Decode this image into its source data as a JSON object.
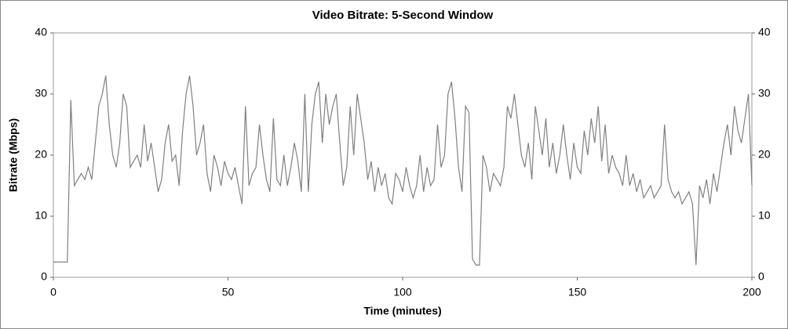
{
  "chart_data": {
    "type": "line",
    "title": "Video Bitrate: 5-Second Window",
    "x_label": "Time (minutes)",
    "y_label": "Bitrate (Mbps)",
    "xlim": [
      0,
      200
    ],
    "xticks": [
      0,
      50,
      100,
      150,
      200
    ],
    "ylim": [
      0,
      40
    ],
    "yticks": [
      0,
      10,
      20,
      30,
      40
    ],
    "y2lim": [
      0,
      40
    ],
    "y2ticks": [
      0,
      10,
      20,
      30,
      40
    ],
    "grid": false,
    "x": [
      0,
      1,
      2,
      3,
      4,
      5,
      6,
      7,
      8,
      9,
      10,
      11,
      12,
      13,
      14,
      15,
      16,
      17,
      18,
      19,
      20,
      21,
      22,
      23,
      24,
      25,
      26,
      27,
      28,
      29,
      30,
      31,
      32,
      33,
      34,
      35,
      36,
      37,
      38,
      39,
      40,
      41,
      42,
      43,
      44,
      45,
      46,
      47,
      48,
      49,
      50,
      51,
      52,
      53,
      54,
      55,
      56,
      57,
      58,
      59,
      60,
      61,
      62,
      63,
      64,
      65,
      66,
      67,
      68,
      69,
      70,
      71,
      72,
      73,
      74,
      75,
      76,
      77,
      78,
      79,
      80,
      81,
      82,
      83,
      84,
      85,
      86,
      87,
      88,
      89,
      90,
      91,
      92,
      93,
      94,
      95,
      96,
      97,
      98,
      99,
      100,
      101,
      102,
      103,
      104,
      105,
      106,
      107,
      108,
      109,
      110,
      111,
      112,
      113,
      114,
      115,
      116,
      117,
      118,
      119,
      120,
      121,
      122,
      123,
      124,
      125,
      126,
      127,
      128,
      129,
      130,
      131,
      132,
      133,
      134,
      135,
      136,
      137,
      138,
      139,
      140,
      141,
      142,
      143,
      144,
      145,
      146,
      147,
      148,
      149,
      150,
      151,
      152,
      153,
      154,
      155,
      156,
      157,
      158,
      159,
      160,
      161,
      162,
      163,
      164,
      165,
      166,
      167,
      168,
      169,
      170,
      171,
      172,
      173,
      174,
      175,
      176,
      177,
      178,
      179,
      180,
      181,
      182,
      183,
      184,
      185,
      186,
      187,
      188,
      189,
      190,
      191,
      192,
      193,
      194,
      195,
      196,
      197,
      198,
      199,
      200
    ],
    "series": [
      {
        "color": "#808080",
        "values": [
          2.5,
          2.5,
          2.5,
          2.5,
          2.5,
          29,
          15,
          16,
          17,
          16,
          18,
          16,
          22,
          28,
          30,
          33,
          25,
          20,
          18,
          22,
          30,
          28,
          18,
          19,
          20,
          18,
          25,
          19,
          22,
          18,
          14,
          16,
          22,
          25,
          19,
          20,
          15,
          24,
          30,
          33,
          28,
          20,
          22,
          25,
          17,
          14,
          20,
          18,
          15,
          19,
          17,
          16,
          18,
          15,
          12,
          28,
          15,
          17,
          18,
          25,
          20,
          16,
          14,
          26,
          16,
          15,
          20,
          15,
          18,
          22,
          19,
          14,
          30,
          14,
          25,
          30,
          32,
          22,
          30,
          25,
          28,
          30,
          22,
          15,
          18,
          28,
          20,
          30,
          26,
          22,
          16,
          19,
          14,
          18,
          15,
          17,
          13,
          12,
          17,
          16,
          14,
          18,
          15,
          13,
          15,
          20,
          14,
          18,
          15,
          16,
          25,
          18,
          20,
          30,
          32,
          26,
          18,
          14,
          28,
          27,
          3,
          2,
          2,
          20,
          18,
          14,
          17,
          16,
          15,
          18,
          28,
          26,
          30,
          25,
          20,
          18,
          22,
          16,
          28,
          24,
          20,
          26,
          18,
          22,
          17,
          20,
          25,
          20,
          16,
          22,
          18,
          17,
          24,
          20,
          26,
          22,
          28,
          19,
          25,
          17,
          20,
          18,
          17,
          15,
          20,
          15,
          17,
          14,
          16,
          13,
          14,
          15,
          13,
          14,
          15,
          25,
          16,
          14,
          13,
          14,
          12,
          13,
          14,
          12,
          2,
          15,
          13,
          16,
          12,
          17,
          14,
          18,
          22,
          25,
          20,
          28,
          24,
          22,
          26,
          30,
          15
        ]
      }
    ]
  }
}
